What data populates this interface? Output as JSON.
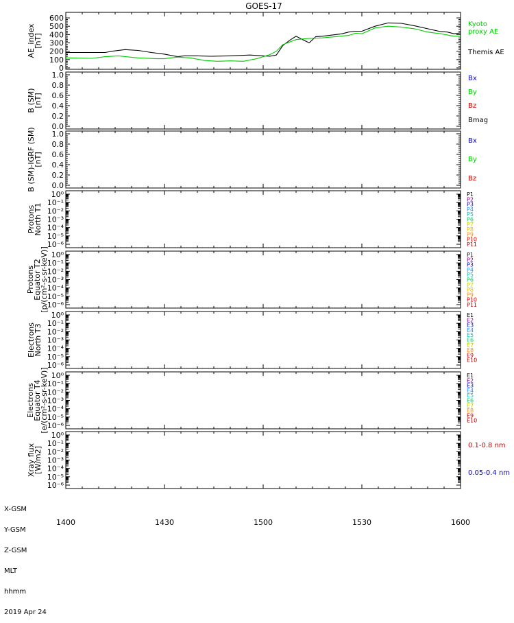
{
  "title": "GOES-17",
  "x_ticks": [
    "1400",
    "1430",
    "1500",
    "1530",
    "1600"
  ],
  "footer": {
    "rows": [
      "X-GSM",
      "Y-GSM",
      "Z-GSM",
      "MLT",
      "hhmm"
    ],
    "date": "2019 Apr 24"
  },
  "colors": {
    "black": "#000000",
    "green": "#00cc00",
    "blue": "#0000cc",
    "red": "#cc0000"
  },
  "chart_data": [
    {
      "type": "line",
      "panel": "ae",
      "ylabel": [
        "AE_index",
        "[nT]"
      ],
      "ylim": [
        0,
        650
      ],
      "xlim": [
        0,
        120
      ],
      "yticks": [
        "600",
        "500",
        "400",
        "300",
        "200",
        "100",
        "0"
      ],
      "ytick_values": [
        600,
        500,
        400,
        300,
        200,
        100,
        0
      ],
      "legend": [
        {
          "text": "Kyoto",
          "color": "#00cc00"
        },
        {
          "text": "proxy AE",
          "color": "#00cc00"
        },
        {
          "text": "Themis AE",
          "color": "#000000"
        }
      ],
      "series": [
        {
          "name": "Themis AE",
          "color": "#000000",
          "x": [
            0,
            12,
            14,
            18,
            22,
            26,
            30,
            34,
            36,
            40,
            44,
            50,
            56,
            60,
            62,
            64,
            66,
            68,
            70,
            72,
            74,
            76,
            78,
            82,
            84,
            86,
            88,
            90,
            94,
            98,
            102,
            106,
            110,
            114,
            116,
            118,
            120
          ],
          "y": [
            185,
            185,
            200,
            220,
            210,
            185,
            165,
            135,
            145,
            145,
            140,
            145,
            155,
            145,
            140,
            155,
            270,
            330,
            380,
            340,
            300,
            375,
            380,
            400,
            410,
            430,
            440,
            440,
            500,
            540,
            535,
            505,
            470,
            435,
            430,
            410,
            420
          ]
        },
        {
          "name": "Kyoto proxy AE",
          "color": "#00cc00",
          "x": [
            0,
            8,
            12,
            16,
            22,
            28,
            30,
            34,
            38,
            42,
            46,
            50,
            54,
            58,
            62,
            64,
            66,
            70,
            74,
            78,
            82,
            86,
            88,
            90,
            94,
            98,
            102,
            106,
            110,
            114,
            118,
            120
          ],
          "y": [
            120,
            115,
            135,
            145,
            120,
            110,
            110,
            130,
            120,
            90,
            80,
            85,
            80,
            110,
            160,
            200,
            280,
            340,
            355,
            360,
            375,
            390,
            415,
            410,
            480,
            500,
            490,
            470,
            430,
            410,
            380,
            380
          ]
        }
      ]
    },
    {
      "type": "line",
      "panel": "b_sm",
      "ylabel": [
        "B (SM)",
        "[nT]"
      ],
      "ylim": [
        0,
        1
      ],
      "yticks": [
        "1.0",
        "0.8",
        "0.6",
        "0.4",
        "0.2",
        "0.0"
      ],
      "ytick_values": [
        1,
        0.8,
        0.6,
        0.4,
        0.2,
        0
      ],
      "legend": [
        {
          "text": "Bx",
          "color": "#0000cc"
        },
        {
          "text": "By",
          "color": "#00cc00"
        },
        {
          "text": "Bz",
          "color": "#cc0000"
        },
        {
          "text": "Bmag",
          "color": "#000000"
        }
      ],
      "series": []
    },
    {
      "type": "line",
      "panel": "b_igrf",
      "ylabel": [
        "B (SM)-IGRF (SM)",
        "[nT]"
      ],
      "ylim": [
        0,
        1
      ],
      "yticks": [
        "1.0",
        "0.8",
        "0.6",
        "0.4",
        "0.2",
        "0.0"
      ],
      "ytick_values": [
        1,
        0.8,
        0.6,
        0.4,
        0.2,
        0
      ],
      "legend": [
        {
          "text": "Bx",
          "color": "#0000cc"
        },
        {
          "text": "By",
          "color": "#00cc00"
        },
        {
          "text": "Bz",
          "color": "#cc0000"
        }
      ],
      "series": []
    },
    {
      "type": "line",
      "panel": "protons_t1",
      "scale": "log",
      "ylabel": [
        "Protons",
        "North T1"
      ],
      "ylim": [
        1e-06,
        1
      ],
      "yticks": [
        "10⁰",
        "10⁻¹",
        "10⁻²",
        "10⁻³",
        "10⁻⁴",
        "10⁻⁵",
        "10⁻⁶"
      ],
      "ytick_values": [
        0,
        -1,
        -2,
        -3,
        -4,
        -5,
        -6
      ],
      "legend": [
        {
          "text": "P1",
          "color": "#000000"
        },
        {
          "text": "P2",
          "color": "#800080"
        },
        {
          "text": "P3",
          "color": "#0000cc"
        },
        {
          "text": "P4",
          "color": "#1e90ff"
        },
        {
          "text": "P5",
          "color": "#00bfbf"
        },
        {
          "text": "P6",
          "color": "#00cc66"
        },
        {
          "text": "P7",
          "color": "#cccc00"
        },
        {
          "text": "P8",
          "color": "#e6b800"
        },
        {
          "text": "P9",
          "color": "#ff8c00"
        },
        {
          "text": "P10",
          "color": "#cc0000"
        },
        {
          "text": "P11",
          "color": "#990000"
        }
      ],
      "series": []
    },
    {
      "type": "line",
      "panel": "protons_t2",
      "scale": "log",
      "ylabel": [
        "Protons",
        "Equator T2",
        "[p/(cm²-s-sr-keV)]"
      ],
      "ylim": [
        1e-06,
        1
      ],
      "yticks": [
        "10⁰",
        "10⁻¹",
        "10⁻²",
        "10⁻³",
        "10⁻⁴",
        "10⁻⁵",
        "10⁻⁶"
      ],
      "ytick_values": [
        0,
        -1,
        -2,
        -3,
        -4,
        -5,
        -6
      ],
      "legend": [
        {
          "text": "P1",
          "color": "#000000"
        },
        {
          "text": "P2",
          "color": "#800080"
        },
        {
          "text": "P3",
          "color": "#0000cc"
        },
        {
          "text": "P4",
          "color": "#1e90ff"
        },
        {
          "text": "P5",
          "color": "#00bfbf"
        },
        {
          "text": "P6",
          "color": "#00cc66"
        },
        {
          "text": "P7",
          "color": "#cccc00"
        },
        {
          "text": "P8",
          "color": "#e6b800"
        },
        {
          "text": "P9",
          "color": "#ff8c00"
        },
        {
          "text": "P10",
          "color": "#cc0000"
        },
        {
          "text": "P11",
          "color": "#990000"
        }
      ],
      "series": []
    },
    {
      "type": "line",
      "panel": "electrons_t3",
      "scale": "log",
      "ylabel": [
        "Electrons",
        "North T3"
      ],
      "ylim": [
        1e-06,
        1
      ],
      "yticks": [
        "10⁰",
        "10⁻¹",
        "10⁻²",
        "10⁻³",
        "10⁻⁴",
        "10⁻⁵",
        "10⁻⁶"
      ],
      "ytick_values": [
        0,
        -1,
        -2,
        -3,
        -4,
        -5,
        -6
      ],
      "legend": [
        {
          "text": "E1",
          "color": "#000000"
        },
        {
          "text": "E2",
          "color": "#800080"
        },
        {
          "text": "E3",
          "color": "#0000cc"
        },
        {
          "text": "E4",
          "color": "#1e90ff"
        },
        {
          "text": "E5",
          "color": "#00bfbf"
        },
        {
          "text": "E6",
          "color": "#00cc66"
        },
        {
          "text": "E7",
          "color": "#cccc00"
        },
        {
          "text": "E8",
          "color": "#ff8c00"
        },
        {
          "text": "E9",
          "color": "#cc0000"
        },
        {
          "text": "E10",
          "color": "#990000"
        }
      ],
      "series": []
    },
    {
      "type": "line",
      "panel": "electrons_t4",
      "scale": "log",
      "ylabel": [
        "Electrons",
        "Equator T4",
        "[e/(cm²-s-sr-keV)]"
      ],
      "ylim": [
        1e-06,
        1
      ],
      "yticks": [
        "10⁰",
        "10⁻¹",
        "10⁻²",
        "10⁻³",
        "10⁻⁴",
        "10⁻⁵",
        "10⁻⁶"
      ],
      "ytick_values": [
        0,
        -1,
        -2,
        -3,
        -4,
        -5,
        -6
      ],
      "legend": [
        {
          "text": "E1",
          "color": "#000000"
        },
        {
          "text": "E2",
          "color": "#800080"
        },
        {
          "text": "E3",
          "color": "#0000cc"
        },
        {
          "text": "E4",
          "color": "#1e90ff"
        },
        {
          "text": "E5",
          "color": "#00bfbf"
        },
        {
          "text": "E6",
          "color": "#00cc66"
        },
        {
          "text": "E7",
          "color": "#cccc00"
        },
        {
          "text": "E8",
          "color": "#ff8c00"
        },
        {
          "text": "E9",
          "color": "#cc0000"
        },
        {
          "text": "E10",
          "color": "#990000"
        }
      ],
      "series": []
    },
    {
      "type": "line",
      "panel": "xray",
      "scale": "log",
      "ylabel": [
        "Xray flux",
        "[W/m2]"
      ],
      "ylim": [
        1e-06,
        1
      ],
      "yticks": [
        "10⁰",
        "10⁻¹",
        "10⁻²",
        "10⁻³",
        "10⁻⁴",
        "10⁻⁵",
        "10⁻⁶"
      ],
      "ytick_values": [
        0,
        -1,
        -2,
        -3,
        -4,
        -5,
        -6
      ],
      "legend": [
        {
          "text": "0.1-0.8 nm",
          "color": "#cc0000"
        },
        {
          "text": "0.05-0.4 nm",
          "color": "#0000cc"
        }
      ],
      "series": []
    }
  ]
}
